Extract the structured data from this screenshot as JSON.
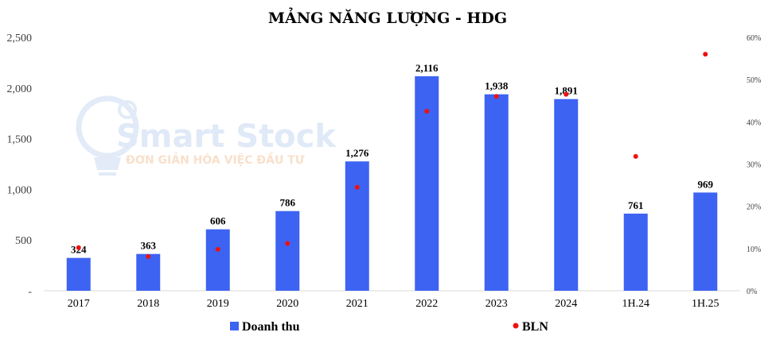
{
  "chart_data": {
    "type": "bar",
    "title": "MẢNG NĂNG LƯỢNG - HDG",
    "categories": [
      "2017",
      "2018",
      "2019",
      "2020",
      "2021",
      "2022",
      "2023",
      "2024",
      "1H.24",
      "1H.25"
    ],
    "series": [
      {
        "name": "Doanh thu",
        "type": "bar",
        "axis": "left",
        "color": "#3d63f3",
        "values": [
          324,
          363,
          606,
          786,
          1276,
          2116,
          1938,
          1891,
          761,
          969
        ],
        "labels": [
          "324",
          "363",
          "606",
          "786",
          "1,276",
          "2,116",
          "1,938",
          "1,891",
          "761",
          "969"
        ]
      },
      {
        "name": "BLN",
        "type": "scatter",
        "axis": "right",
        "color": "#ee1111",
        "values": [
          10.2,
          8.1,
          9.8,
          11.2,
          24.5,
          42.5,
          46.0,
          46.5,
          31.8,
          56.0
        ]
      }
    ],
    "y_left": {
      "range": [
        0,
        2500
      ],
      "ticks": [
        0,
        500,
        1000,
        1500,
        2000,
        2500
      ],
      "tick_labels": [
        "-",
        "500",
        "1,000",
        "1,500",
        "2,000",
        "2,500"
      ]
    },
    "y_right": {
      "range": [
        0,
        60
      ],
      "ticks": [
        0,
        10,
        20,
        30,
        40,
        50,
        60
      ],
      "tick_labels": [
        "0%",
        "10%",
        "20%",
        "30%",
        "40%",
        "50%",
        "60%"
      ]
    },
    "grid": false,
    "legend": "bottom"
  },
  "watermark": {
    "brand": "Smart Stock",
    "tagline": "ĐƠN GIẢN HÓA VIỆC ĐẦU TƯ"
  }
}
